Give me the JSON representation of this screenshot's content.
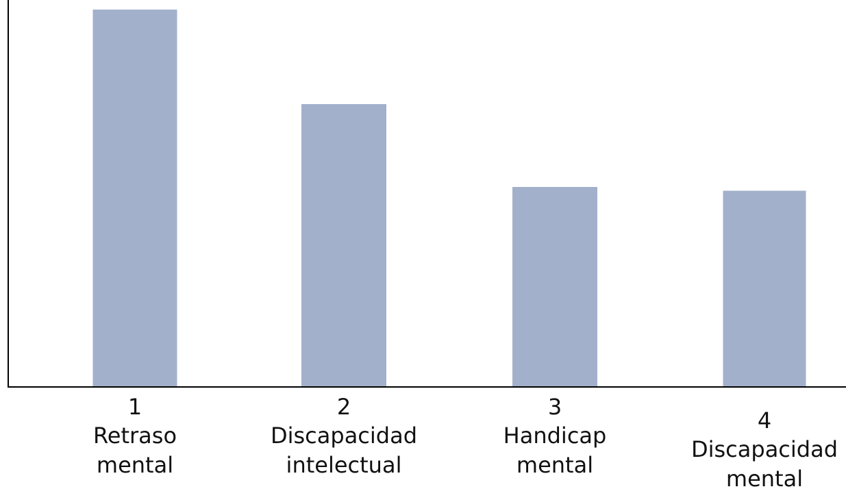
{
  "chart_data": {
    "type": "bar",
    "categories": [
      [
        "1",
        "Retraso",
        "mental"
      ],
      [
        "2",
        "Discapacidad",
        "intelectual"
      ],
      [
        "3",
        "Handicap",
        "mental"
      ],
      [
        "4",
        "Discapacidad",
        "mental"
      ]
    ],
    "values": [
      100,
      75,
      53,
      52
    ],
    "title": "",
    "xlabel": "",
    "ylabel": "",
    "ylim": [
      0,
      100
    ],
    "grid": false,
    "bar_color": "#a2b0cb",
    "axis_color": "#000000"
  }
}
